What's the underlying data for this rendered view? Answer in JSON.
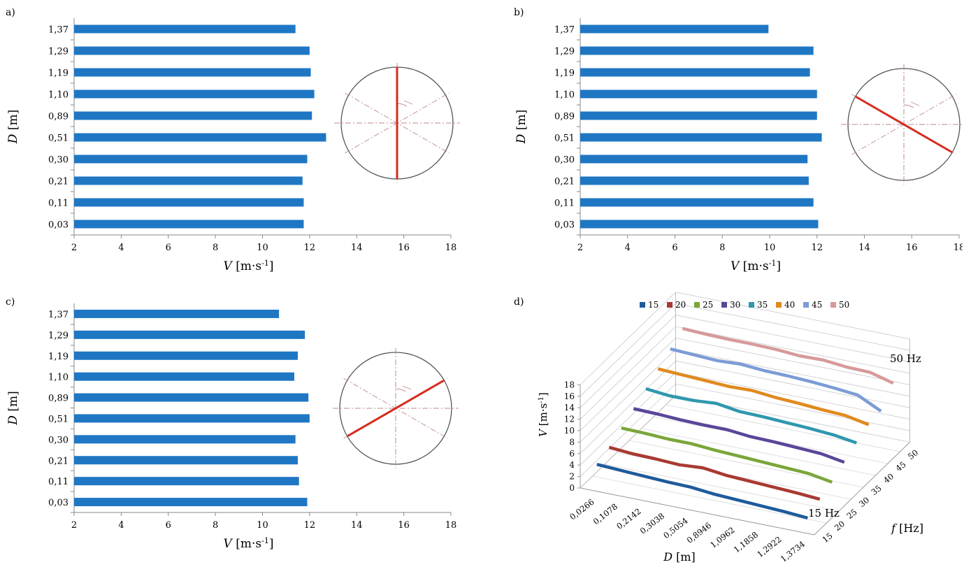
{
  "panels": {
    "a": {
      "letter": "a)"
    },
    "b": {
      "letter": "b)"
    },
    "c": {
      "letter": "c)"
    },
    "d": {
      "letter": "d)"
    }
  },
  "colors": {
    "bar": "#1f77c4",
    "diameter_line": "#d62b1e",
    "dashdot": "#c08a8a",
    "circle": "#555555",
    "series": [
      "#1f5b9b",
      "#a83a32",
      "#7aa63a",
      "#5a4699",
      "#2f98ae",
      "#e08a1f",
      "#7c9cd6",
      "#d69a9a"
    ]
  },
  "chart_data": [
    {
      "type": "bar",
      "orientation": "horizontal",
      "panel": "a",
      "categories": [
        "0,03",
        "0,11",
        "0,21",
        "0,30",
        "0,51",
        "0,89",
        "1,10",
        "1,19",
        "1,29",
        "1,37"
      ],
      "values": [
        11.75,
        11.75,
        11.7,
        11.9,
        12.7,
        12.1,
        12.2,
        12.05,
        12.0,
        11.4
      ],
      "xlim": [
        2,
        18
      ],
      "xticks": [
        "2",
        "4",
        "6",
        "8",
        "10",
        "12",
        "14",
        "16",
        "18"
      ],
      "xlabel_italic": "V",
      "xlabel_rest": " [m·s",
      "xlabel_sup": "-1",
      "xlabel_close": "]",
      "ylabel_italic": "D",
      "ylabel_rest": " [m]",
      "inset_line_angle_deg": 0
    },
    {
      "type": "bar",
      "orientation": "horizontal",
      "panel": "b",
      "categories": [
        "0,03",
        "0,11",
        "0,21",
        "0,30",
        "0,51",
        "0,89",
        "1,10",
        "1,19",
        "1,29",
        "1,37"
      ],
      "values": [
        12.05,
        11.85,
        11.65,
        11.6,
        12.2,
        12.0,
        12.0,
        11.7,
        11.85,
        9.95
      ],
      "xlim": [
        2,
        18
      ],
      "xticks": [
        "2",
        "4",
        "6",
        "8",
        "10",
        "12",
        "14",
        "16",
        "18"
      ],
      "xlabel_italic": "V",
      "xlabel_rest": " [m·s",
      "xlabel_sup": "-1",
      "xlabel_close": "]",
      "ylabel_italic": "D",
      "ylabel_rest": " [m]",
      "inset_line_angle_deg": -60
    },
    {
      "type": "bar",
      "orientation": "horizontal",
      "panel": "c",
      "categories": [
        "0,03",
        "0,11",
        "0,21",
        "0,30",
        "0,51",
        "0,89",
        "1,10",
        "1,19",
        "1,29",
        "1,37"
      ],
      "values": [
        11.9,
        11.55,
        11.5,
        11.4,
        12.0,
        11.95,
        11.35,
        11.5,
        11.8,
        10.7
      ],
      "xlim": [
        2,
        18
      ],
      "xticks": [
        "2",
        "4",
        "6",
        "8",
        "10",
        "12",
        "14",
        "16",
        "18"
      ],
      "xlabel_italic": "V",
      "xlabel_rest": " [m·s",
      "xlabel_sup": "-1",
      "xlabel_close": "]",
      "ylabel_italic": "D",
      "ylabel_rest": " [m]",
      "inset_line_angle_deg": 60
    },
    {
      "type": "line",
      "subtype": "3d-line",
      "panel": "d",
      "x_categories": [
        "0,0266",
        "0,1078",
        "0,2142",
        "0,3038",
        "0,5054",
        "0,8946",
        "1,0962",
        "1,1858",
        "1,2922",
        "1,3734"
      ],
      "depth_ticks": [
        "15",
        "20",
        "25",
        "30",
        "35",
        "40",
        "45",
        "50"
      ],
      "zlim": [
        0,
        18
      ],
      "zticks": [
        "0",
        "2",
        "4",
        "6",
        "8",
        "10",
        "12",
        "14",
        "16",
        "18"
      ],
      "xlabel_italic": "D",
      "xlabel_rest": " [m]",
      "depthlabel_italic": "f",
      "depthlabel_rest": " [Hz]",
      "zlabel_italic": "V",
      "zlabel_rest": " [m·s",
      "zlabel_sup": "-1",
      "zlabel_close": "]",
      "legend_position": "top",
      "annotations": [
        "15 Hz",
        "50 Hz"
      ],
      "series": [
        {
          "name": "15",
          "values": [
            3.7,
            3.5,
            3.3,
            3.1,
            3.0,
            2.6,
            2.4,
            2.2,
            2.0,
            1.7
          ]
        },
        {
          "name": "20",
          "values": [
            4.6,
            4.3,
            4.2,
            4.0,
            4.3,
            3.8,
            3.6,
            3.4,
            3.2,
            2.9
          ]
        },
        {
          "name": "25",
          "values": [
            5.9,
            5.8,
            5.6,
            5.6,
            5.3,
            5.1,
            4.9,
            4.7,
            4.5,
            3.8
          ]
        },
        {
          "name": "30",
          "values": [
            7.2,
            7.1,
            6.9,
            6.8,
            6.8,
            6.4,
            6.3,
            6.1,
            5.9,
            5.2
          ]
        },
        {
          "name": "35",
          "values": [
            8.6,
            8.2,
            8.2,
            8.5,
            7.9,
            7.8,
            7.6,
            7.4,
            7.1,
            6.5
          ]
        },
        {
          "name": "40",
          "values": [
            10.0,
            9.8,
            9.6,
            9.4,
            9.5,
            9.1,
            8.9,
            8.6,
            8.4,
            7.6
          ]
        },
        {
          "name": "45",
          "values": [
            11.4,
            11.2,
            11.0,
            11.2,
            10.9,
            10.8,
            10.6,
            10.3,
            9.9,
            7.9
          ]
        },
        {
          "name": "50",
          "values": [
            12.9,
            12.7,
            12.6,
            12.6,
            12.5,
            12.2,
            12.3,
            11.9,
            11.8,
            10.7
          ]
        }
      ]
    }
  ]
}
